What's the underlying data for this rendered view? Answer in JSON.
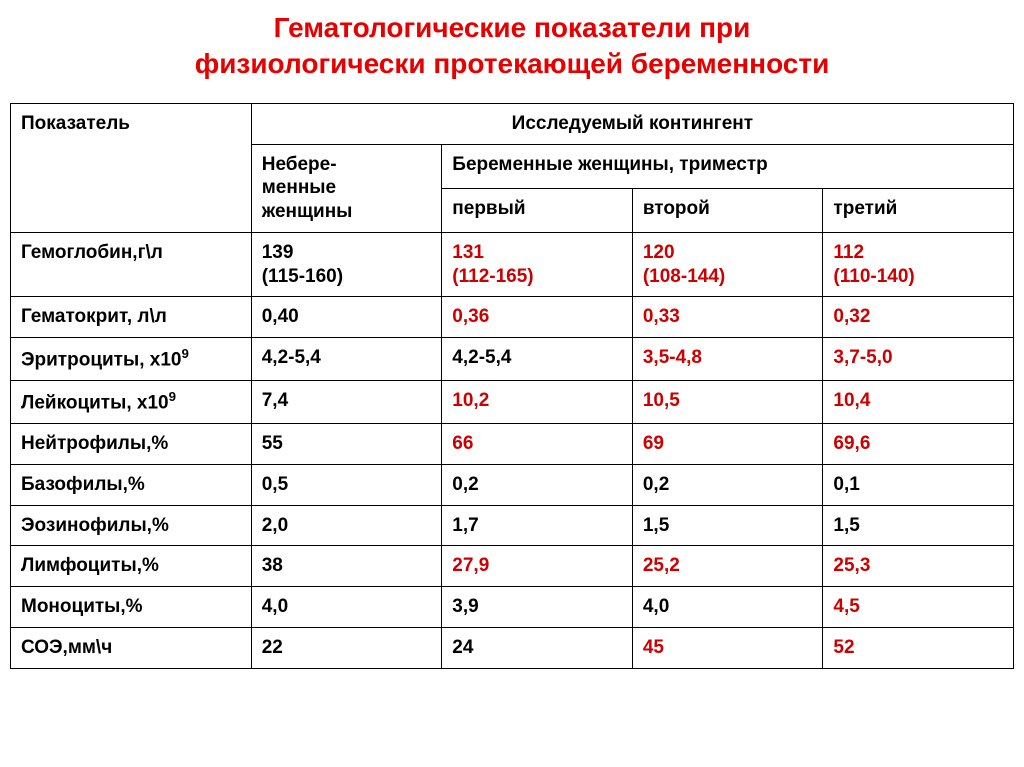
{
  "title_line1": "Гематологические показатели при",
  "title_line2": "физиологически протекающей беременности",
  "header": {
    "col_indicator": "Показатель",
    "col_contingent": "Исследуемый контингент",
    "col_nonpregnant_l1": "Небере-",
    "col_nonpregnant_l2": "менные",
    "col_nonpregnant_l3": "женщины",
    "col_pregnant": "Беременные женщины, триместр",
    "col_first": "первый",
    "col_second": "второй",
    "col_third": "третий"
  },
  "rows": [
    {
      "label": "Гемоглобин,г\\л",
      "cells": [
        {
          "v": "139",
          "sub": "(115-160)",
          "red": false
        },
        {
          "v": "131",
          "sub": "(112-165)",
          "red": true
        },
        {
          "v": "120",
          "sub": "(108-144)",
          "red": true
        },
        {
          "v": "112",
          "sub": "(110-140)",
          "red": true
        }
      ]
    },
    {
      "label": "Гематокрит, л\\л",
      "cells": [
        {
          "v": "0,40",
          "red": false
        },
        {
          "v": "0,36",
          "red": true
        },
        {
          "v": "0,33",
          "red": true
        },
        {
          "v": "0,32",
          "red": true
        }
      ]
    },
    {
      "label_html": "Эритроциты, х10<span class=\"sup\">9</span>",
      "cells": [
        {
          "v": "4,2-5,4",
          "red": false
        },
        {
          "v": "4,2-5,4",
          "red": false
        },
        {
          "v": "3,5-4,8",
          "red": true
        },
        {
          "v": "3,7-5,0",
          "red": true
        }
      ]
    },
    {
      "label_html": "Лейкоциты, х10<span class=\"sup\">9</span>",
      "cells": [
        {
          "v": "7,4",
          "red": false
        },
        {
          "v": "10,2",
          "red": true
        },
        {
          "v": "10,5",
          "red": true
        },
        {
          "v": "10,4",
          "red": true
        }
      ]
    },
    {
      "label": "Нейтрофилы,%",
      "cells": [
        {
          "v": "55",
          "red": false
        },
        {
          "v": "66",
          "red": true
        },
        {
          "v": "69",
          "red": true
        },
        {
          "v": "69,6",
          "red": true
        }
      ]
    },
    {
      "label": "Базофилы,%",
      "cells": [
        {
          "v": "0,5",
          "red": false
        },
        {
          "v": "0,2",
          "red": false
        },
        {
          "v": "0,2",
          "red": false
        },
        {
          "v": "0,1",
          "red": false
        }
      ]
    },
    {
      "label": "Эозинофилы,%",
      "cells": [
        {
          "v": "2,0",
          "red": false
        },
        {
          "v": "1,7",
          "red": false
        },
        {
          "v": "1,5",
          "red": false
        },
        {
          "v": "1,5",
          "red": false
        }
      ]
    },
    {
      "label": "Лимфоциты,%",
      "cells": [
        {
          "v": "38",
          "red": false
        },
        {
          "v": "27,9",
          "red": true
        },
        {
          "v": "25,2",
          "red": true
        },
        {
          "v": "25,3",
          "red": true
        }
      ]
    },
    {
      "label": "Моноциты,%",
      "cells": [
        {
          "v": "4,0",
          "red": false
        },
        {
          "v": "3,9",
          "red": false
        },
        {
          "v": "4,0",
          "red": false
        },
        {
          "v": "4,5",
          "red": true
        }
      ]
    },
    {
      "label": "СОЭ,мм\\ч",
      "cells": [
        {
          "v": "22",
          "red": false
        },
        {
          "v": "24",
          "red": false
        },
        {
          "v": "45",
          "red": true
        },
        {
          "v": "52",
          "red": true
        }
      ]
    }
  ],
  "style": {
    "title_color": "#e60000",
    "title_fontsize": 28,
    "cell_fontsize": 19,
    "red_color": "#cc0000",
    "black_color": "#000000",
    "border_color": "#000000",
    "background_color": "#ffffff",
    "font_family": "Verdana, Arial, sans-serif"
  }
}
